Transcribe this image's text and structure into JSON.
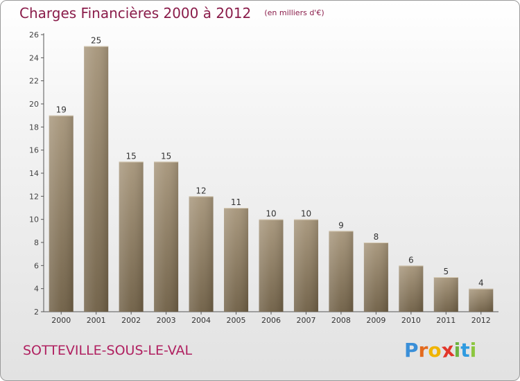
{
  "title": "Charges Financières 2000 à 2012",
  "subtitle": "(en milliers d'€)",
  "commune": "SOTTEVILLE-SOUS-LE-VAL",
  "logo": {
    "letters": [
      "P",
      "r",
      "o",
      "x",
      "i",
      "t",
      "i"
    ],
    "colors": [
      "#3a8fd8",
      "#e36a1e",
      "#f0b400",
      "#e2362a",
      "#6db33f",
      "#2f9be0",
      "#8cc63f"
    ]
  },
  "chart_data": {
    "type": "bar",
    "categories": [
      "2000",
      "2001",
      "2002",
      "2003",
      "2004",
      "2005",
      "2006",
      "2007",
      "2008",
      "2009",
      "2010",
      "2011",
      "2012"
    ],
    "values": [
      19,
      25,
      15,
      15,
      12,
      11,
      10,
      10,
      9,
      8,
      6,
      5,
      4
    ],
    "data_labels": [
      "19",
      "25",
      "15",
      "15",
      "12",
      "11",
      "10",
      "10",
      "9",
      "8",
      "6",
      "5",
      "4"
    ],
    "title": "Charges Financières 2000 à 2012",
    "subtitle": "(en milliers d'€)",
    "xlabel": "",
    "ylabel": "",
    "ylim": [
      2,
      26
    ],
    "yticks": [
      2,
      4,
      6,
      8,
      10,
      12,
      14,
      16,
      18,
      20,
      22,
      24,
      26
    ],
    "grid": false,
    "bar_color": "#8c7a5e"
  }
}
